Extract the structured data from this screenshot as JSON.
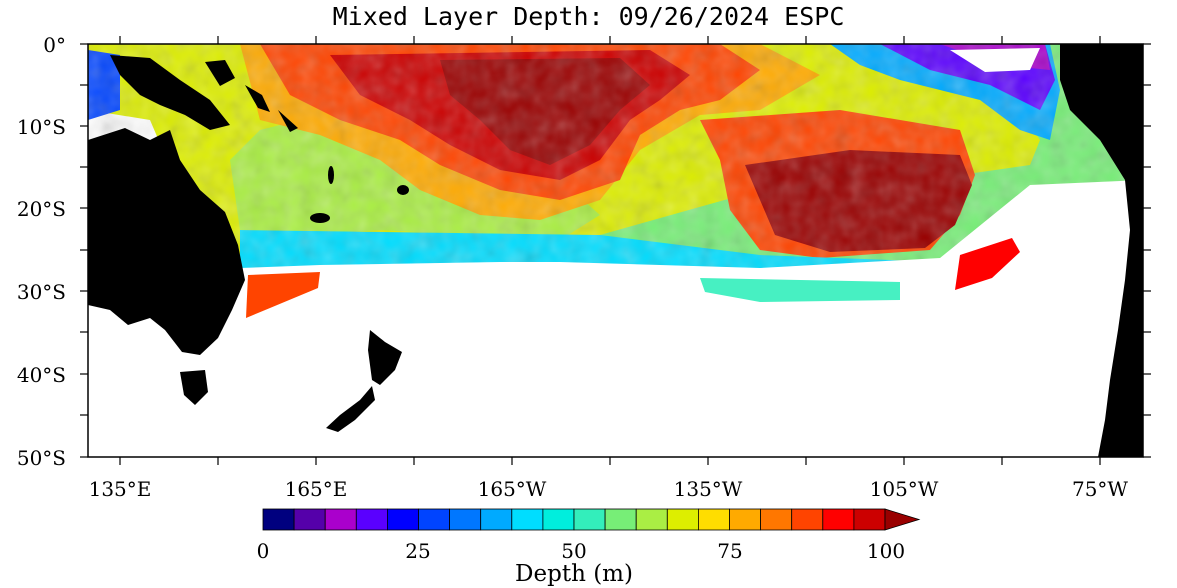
{
  "title": "Mixed Layer Depth: 09/26/2024 ESPC",
  "map": {
    "lat_labels": [
      "0°",
      "10°S",
      "20°S",
      "30°S",
      "40°S",
      "50°S"
    ],
    "lon_labels": [
      "135°E",
      "165°E",
      "165°W",
      "135°W",
      "105°W",
      "75°W"
    ],
    "land_color": "#000000",
    "missing_color": "#ffffff"
  },
  "colorbar": {
    "title": "Depth (m)",
    "tick_labels": [
      "0",
      "25",
      "50",
      "75",
      "100"
    ],
    "colors": [
      "#00007f",
      "#5500aa",
      "#aa00cc",
      "#5a00ff",
      "#0000ff",
      "#0044ff",
      "#0077ff",
      "#00aaff",
      "#00ddff",
      "#00eedd",
      "#33eebb",
      "#77ee77",
      "#aaee44",
      "#ddee00",
      "#ffdd00",
      "#ffaa00",
      "#ff7700",
      "#ff4400",
      "#ff0000",
      "#cc0000",
      "#990000"
    ]
  }
}
